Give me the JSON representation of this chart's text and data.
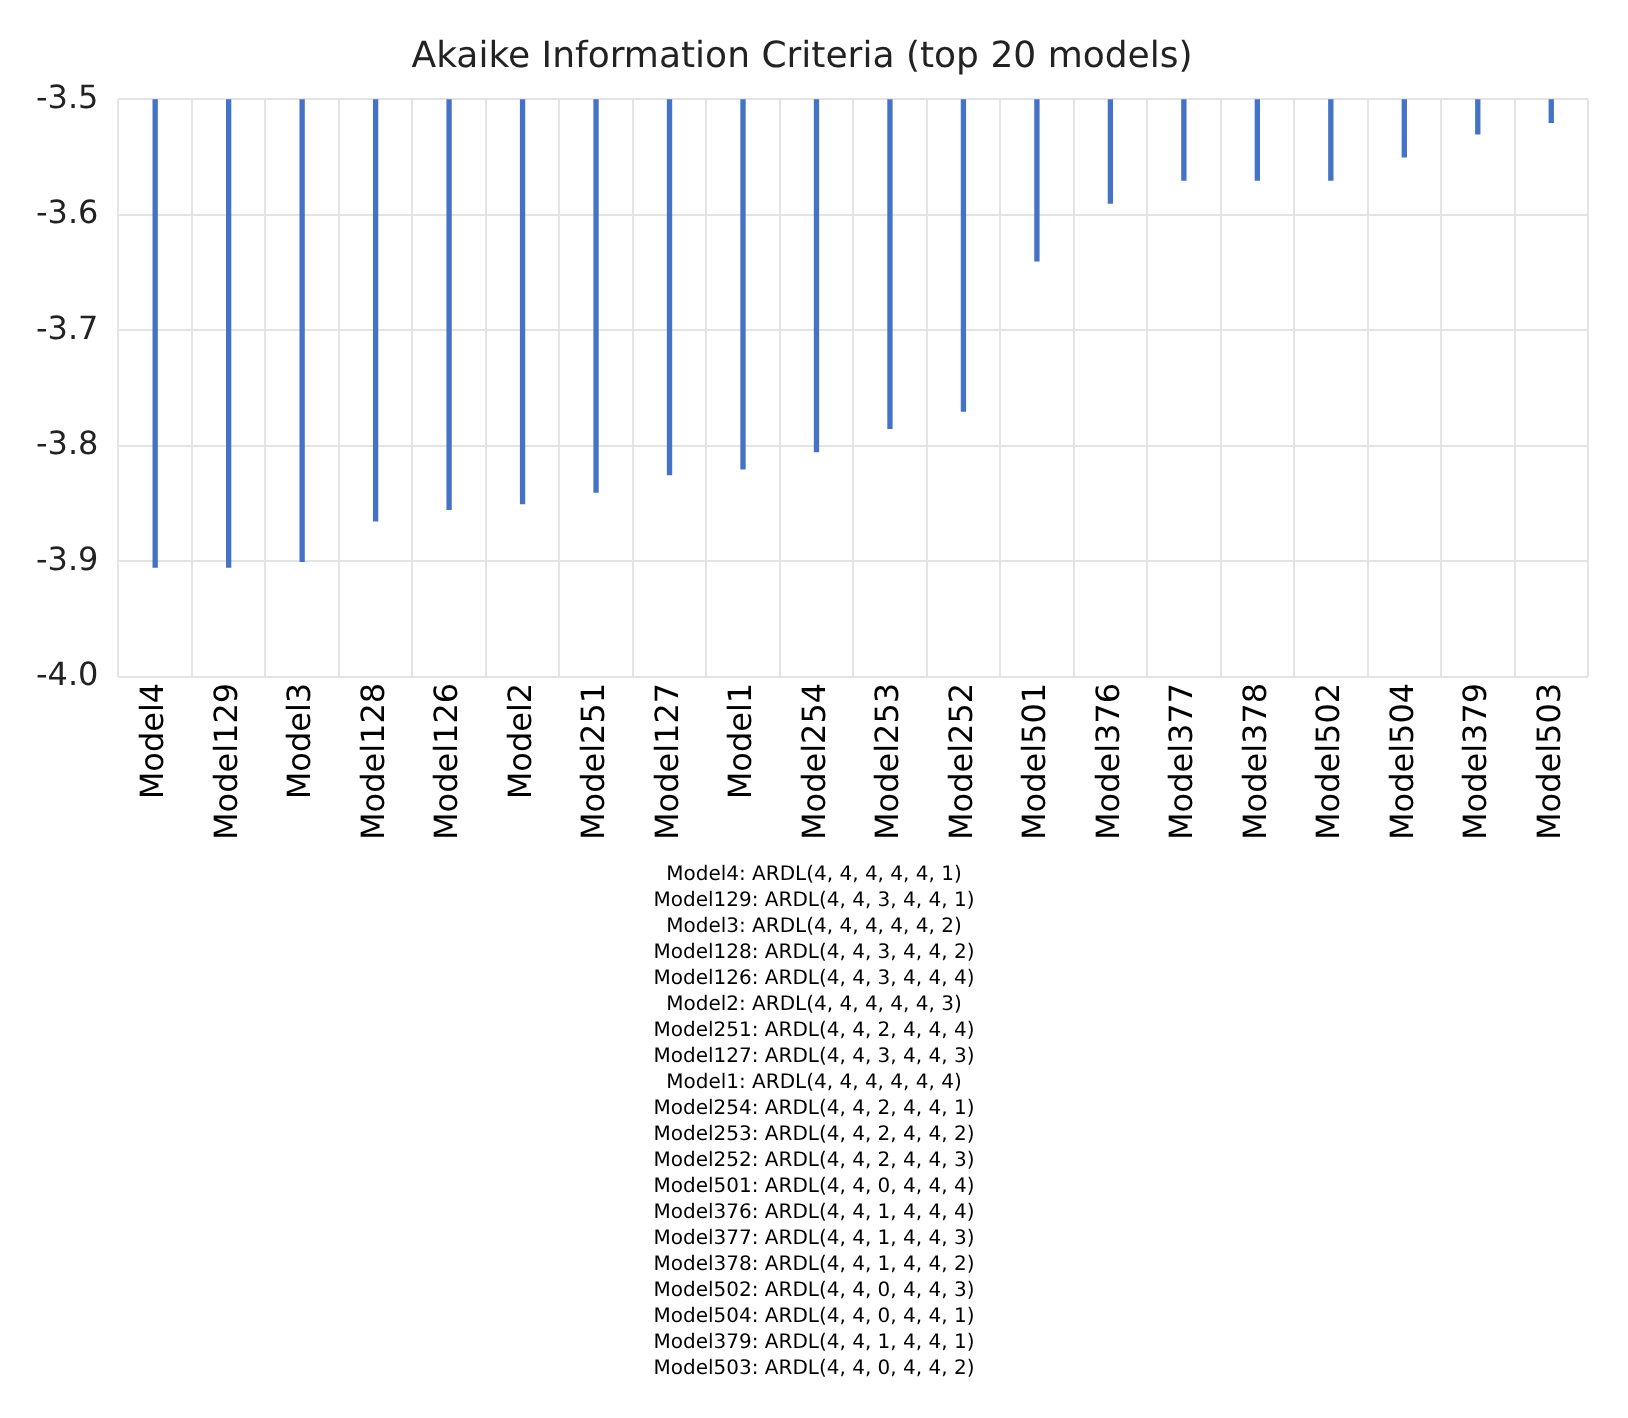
{
  "chart_data": {
    "type": "bar",
    "title": "Akaike Information Criteria (top 20 models)",
    "categories": [
      "Model4",
      "Model129",
      "Model3",
      "Model128",
      "Model126",
      "Model2",
      "Model251",
      "Model127",
      "Model1",
      "Model254",
      "Model253",
      "Model252",
      "Model501",
      "Model376",
      "Model377",
      "Model378",
      "Model502",
      "Model504",
      "Model379",
      "Model503"
    ],
    "values": [
      -3.905,
      -3.905,
      -3.9,
      -3.865,
      -3.855,
      -3.85,
      -3.84,
      -3.825,
      -3.82,
      -3.805,
      -3.785,
      -3.77,
      -3.64,
      -3.59,
      -3.57,
      -3.57,
      -3.57,
      -3.55,
      -3.53,
      -3.52
    ],
    "color": "#4472c4",
    "ylim": [
      -4.0,
      -3.5
    ],
    "yticks": [
      {
        "value": -4.0,
        "label": "-4.0"
      },
      {
        "value": -3.9,
        "label": "-3.9"
      },
      {
        "value": -3.8,
        "label": "-3.8"
      },
      {
        "value": -3.7,
        "label": "-3.7"
      },
      {
        "value": -3.6,
        "label": "-3.6"
      },
      {
        "value": -3.5,
        "label": "-3.5"
      }
    ],
    "grid": true,
    "annotations": [
      "Model4: ARDL(4, 4, 4, 4, 4, 1)",
      "Model129: ARDL(4, 4, 3, 4, 4, 1)",
      "Model3: ARDL(4, 4, 4, 4, 4, 2)",
      "Model128: ARDL(4, 4, 3, 4, 4, 2)",
      "Model126: ARDL(4, 4, 3, 4, 4, 4)",
      "Model2: ARDL(4, 4, 4, 4, 4, 3)",
      "Model251: ARDL(4, 4, 2, 4, 4, 4)",
      "Model127: ARDL(4, 4, 3, 4, 4, 3)",
      "Model1: ARDL(4, 4, 4, 4, 4, 4)",
      "Model254: ARDL(4, 4, 2, 4, 4, 1)",
      "Model253: ARDL(4, 4, 2, 4, 4, 2)",
      "Model252: ARDL(4, 4, 2, 4, 4, 3)",
      "Model501: ARDL(4, 4, 0, 4, 4, 4)",
      "Model376: ARDL(4, 4, 1, 4, 4, 4)",
      "Model377: ARDL(4, 4, 1, 4, 4, 3)",
      "Model378: ARDL(4, 4, 1, 4, 4, 2)",
      "Model502: ARDL(4, 4, 0, 4, 4, 3)",
      "Model504: ARDL(4, 4, 0, 4, 4, 1)",
      "Model379: ARDL(4, 4, 1, 4, 4, 1)",
      "Model503: ARDL(4, 4, 0, 4, 4, 2)"
    ]
  }
}
